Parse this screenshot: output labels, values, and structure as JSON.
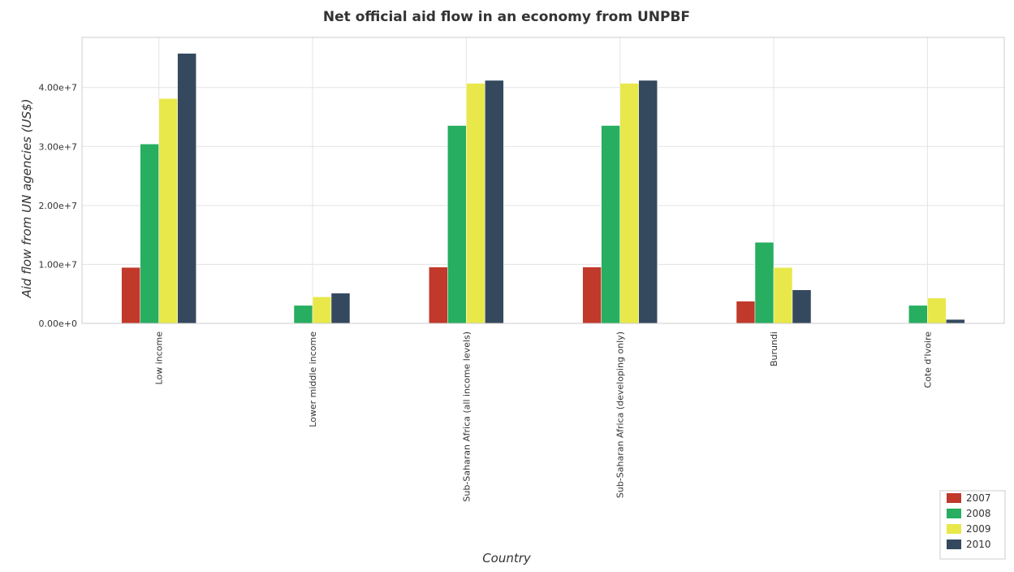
{
  "chart_data": {
    "type": "bar",
    "title": "Net official aid flow in an economy from UNPBF",
    "xlabel": "Country",
    "ylabel": "Aid flow from UN agencies (US$)",
    "ylim": [
      0,
      48500000
    ],
    "yticks": [
      0,
      10000000,
      20000000,
      30000000,
      40000000
    ],
    "ytick_labels": [
      "0.00e+0",
      "1.00e+7",
      "2.00e+7",
      "3.00e+7",
      "4.00e+7"
    ],
    "grid": true,
    "legend_position": "bottom-right",
    "categories": [
      "Low income",
      "Lower middle income",
      "Sub-Saharan Africa (all income levels)",
      "Sub-Saharan Africa (developing only)",
      "Burundi",
      "Cote d'Ivoire"
    ],
    "series": [
      {
        "name": "2007",
        "color": "#c0392b",
        "values": [
          9490000,
          60000,
          9550000,
          9550000,
          3760000,
          60000
        ]
      },
      {
        "name": "2008",
        "color": "#27ae60",
        "values": [
          30420000,
          3050000,
          33550000,
          33550000,
          13750000,
          3050000
        ]
      },
      {
        "name": "2009",
        "color": "#e8e84a",
        "values": [
          38120000,
          4500000,
          40710000,
          40710000,
          9470000,
          4290000
        ]
      },
      {
        "name": "2010",
        "color": "#34495e",
        "values": [
          45790000,
          5120000,
          41210000,
          41210000,
          5680000,
          670000
        ]
      }
    ]
  }
}
